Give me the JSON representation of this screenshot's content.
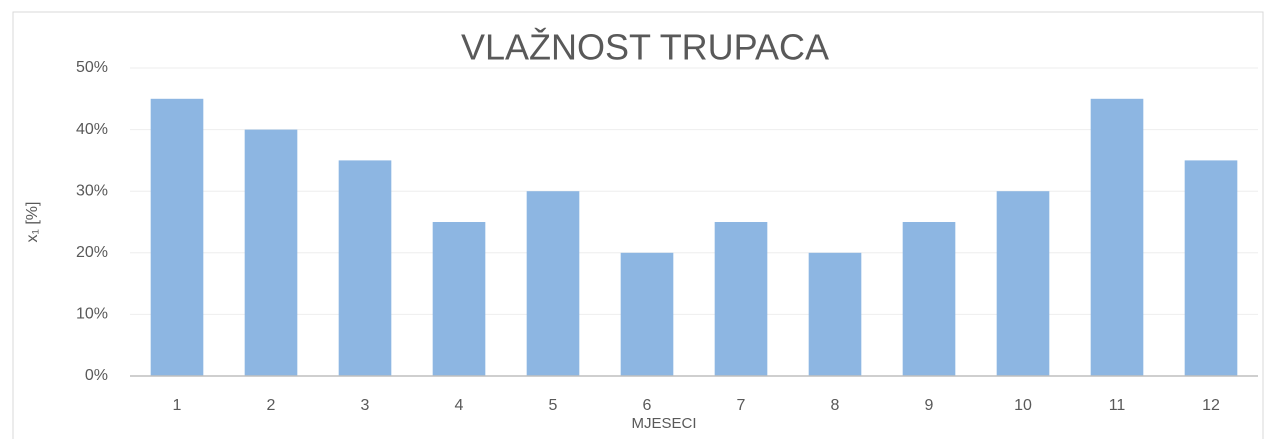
{
  "chart_data": {
    "type": "bar",
    "title": "VLAŽNOST TRUPACA",
    "x_label": "MJESECI",
    "y_label": "x₁ [%]",
    "categories": [
      "1",
      "2",
      "3",
      "4",
      "5",
      "6",
      "7",
      "8",
      "9",
      "10",
      "11",
      "12"
    ],
    "values": [
      45,
      40,
      35,
      25,
      30,
      20,
      25,
      20,
      25,
      30,
      45,
      35
    ],
    "color": "#8db6e2",
    "ylim": [
      0,
      50
    ],
    "yticks": [
      {
        "value": 0,
        "label": "0%"
      },
      {
        "value": 10,
        "label": "10%"
      },
      {
        "value": 20,
        "label": "20%"
      },
      {
        "value": 30,
        "label": "30%"
      },
      {
        "value": 40,
        "label": "40%"
      },
      {
        "value": 50,
        "label": "50%"
      }
    ],
    "grid": true
  }
}
